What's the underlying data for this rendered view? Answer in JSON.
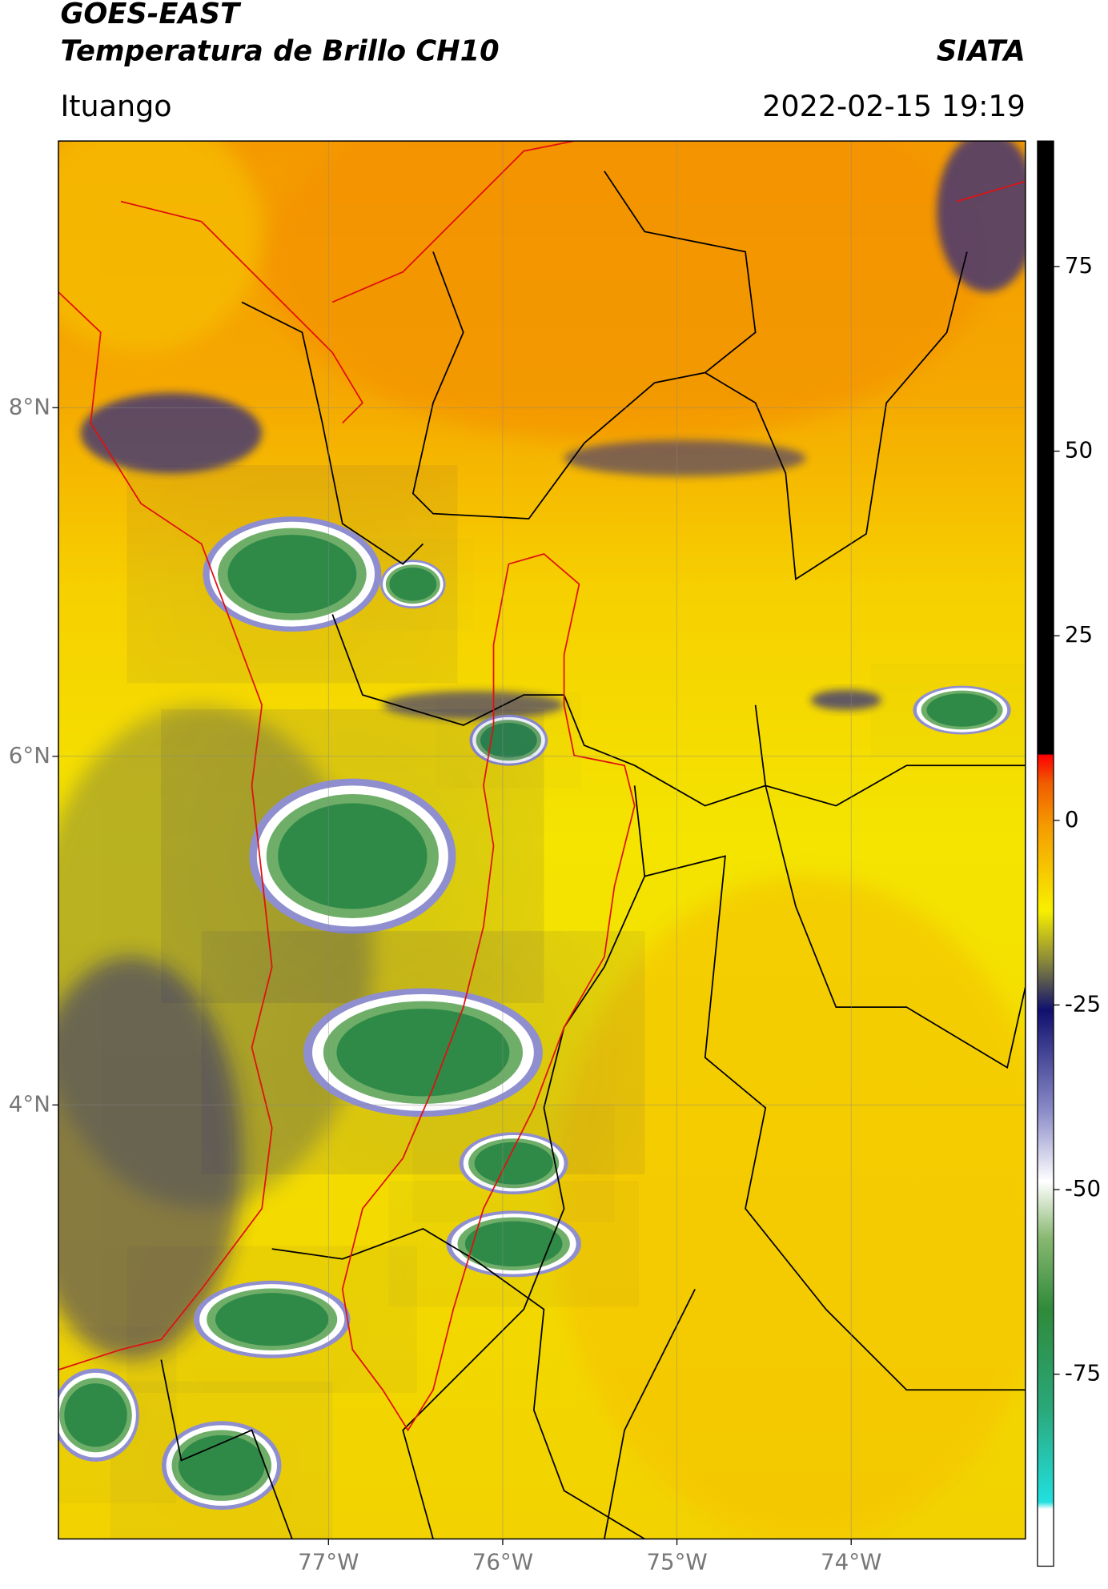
{
  "header": {
    "title": "GOES-EAST",
    "subtitle": "Temperatura de Brillo CH10",
    "source": "SIATA",
    "location": "Ituango",
    "timestamp": "2022-02-15 19:19"
  },
  "map": {
    "xlim": [
      -78.55,
      -73.0
    ],
    "ylim": [
      1.51,
      9.53
    ],
    "grid": true,
    "xticks": [
      {
        "value": -77,
        "label": "77°W"
      },
      {
        "value": -76,
        "label": "76°W"
      },
      {
        "value": -75,
        "label": "75°W"
      },
      {
        "value": -74,
        "label": "74°W"
      }
    ],
    "yticks": [
      {
        "value": 4,
        "label": "4°N"
      },
      {
        "value": 6,
        "label": "6°N"
      },
      {
        "value": 8,
        "label": "8°N"
      }
    ]
  },
  "colorbar": {
    "lim": [
      -101,
      92
    ],
    "ticks": [
      -75,
      -50,
      -25,
      0,
      25,
      50,
      75
    ]
  }
}
